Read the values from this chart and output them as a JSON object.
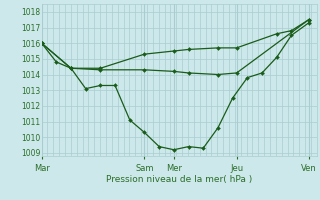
{
  "bg_color": "#cde8ea",
  "grid_color": "#a8cdd0",
  "line_color": "#1a5c1a",
  "marker_color": "#1a5c1a",
  "xlabel": "Pression niveau de la mer( hPa )",
  "xlabel_color": "#2a6e2a",
  "tick_color": "#2a6e2a",
  "ylim": [
    1008.8,
    1018.5
  ],
  "yticks": [
    1009,
    1010,
    1011,
    1012,
    1013,
    1014,
    1015,
    1016,
    1017,
    1018
  ],
  "xlim": [
    0.0,
    1.03
  ],
  "xtick_labels": [
    "Mar",
    "Sam",
    "Mer",
    "Jeu",
    "Ven"
  ],
  "xtick_positions": [
    0.0,
    0.385,
    0.495,
    0.73,
    1.0
  ],
  "vline_positions": [
    0.0,
    0.385,
    0.495,
    0.73,
    1.0
  ],
  "num_vgrid": 48,
  "line1_x": [
    0.0,
    0.055,
    0.11,
    0.165,
    0.22,
    0.275,
    0.33,
    0.385,
    0.44,
    0.495,
    0.55,
    0.605,
    0.66,
    0.715,
    0.77,
    0.825,
    0.88,
    0.935,
    1.0
  ],
  "line1_y": [
    1016.0,
    1014.8,
    1014.4,
    1013.1,
    1013.3,
    1013.3,
    1011.1,
    1010.3,
    1009.4,
    1009.2,
    1009.4,
    1009.3,
    1010.6,
    1012.5,
    1013.8,
    1014.1,
    1015.1,
    1016.5,
    1017.3
  ],
  "line2_x": [
    0.0,
    0.11,
    0.22,
    0.385,
    0.495,
    0.55,
    0.66,
    0.73,
    1.0
  ],
  "line2_y": [
    1016.0,
    1014.4,
    1014.3,
    1014.3,
    1014.2,
    1014.1,
    1014.0,
    1014.1,
    1017.5
  ],
  "line3_x": [
    0.0,
    0.11,
    0.22,
    0.385,
    0.495,
    0.55,
    0.66,
    0.73,
    0.88,
    0.935,
    1.0
  ],
  "line3_y": [
    1016.0,
    1014.4,
    1014.4,
    1015.3,
    1015.5,
    1015.6,
    1015.7,
    1015.7,
    1016.6,
    1016.8,
    1017.5
  ]
}
